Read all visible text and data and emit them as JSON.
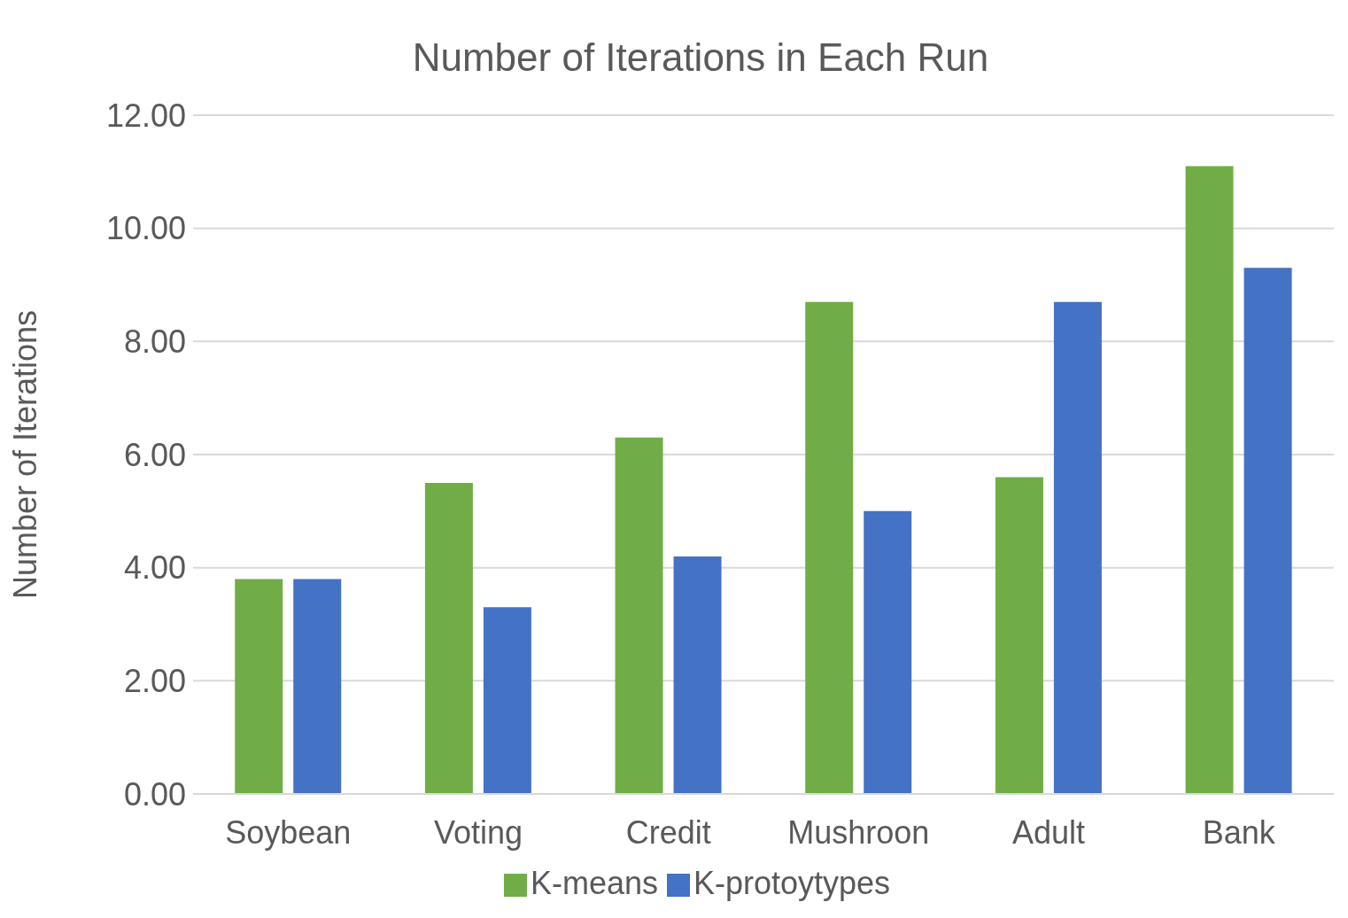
{
  "chart_data": {
    "type": "bar",
    "title": "Number of Iterations in Each Run",
    "ylabel": "Number of Iterations",
    "categories": [
      "Soybean",
      "Voting",
      "Credit",
      "Mushroon",
      "Adult",
      "Bank"
    ],
    "series": [
      {
        "name": "K-means",
        "color": "#70ad47",
        "values": [
          3.8,
          5.5,
          6.3,
          8.7,
          5.6,
          11.1
        ]
      },
      {
        "name": "K-protoytypes",
        "color": "#4472c4",
        "values": [
          3.8,
          3.3,
          4.2,
          5.0,
          8.7,
          9.3
        ]
      }
    ],
    "ylim": [
      0,
      12
    ],
    "yticks": [
      {
        "value": 0,
        "label": "0.00"
      },
      {
        "value": 2,
        "label": "2.00"
      },
      {
        "value": 4,
        "label": "4.00"
      },
      {
        "value": 6,
        "label": "6.00"
      },
      {
        "value": 8,
        "label": "8.00"
      },
      {
        "value": 10,
        "label": "10.00"
      },
      {
        "value": 12,
        "label": "12.00"
      }
    ],
    "grid": "y",
    "legend": "bottom"
  }
}
